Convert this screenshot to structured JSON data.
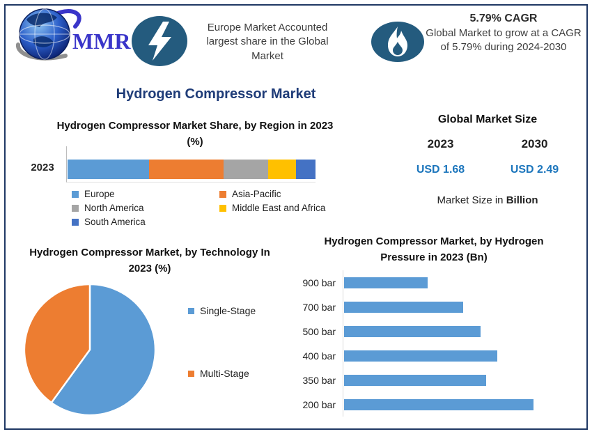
{
  "brand": {
    "logo_text": "MMR"
  },
  "header": {
    "highlight_europe": {
      "icon": "lightning-icon",
      "text": "Europe Market Accounted largest share in the Global Market"
    },
    "highlight_cagr": {
      "icon": "flame-icon",
      "title": "5.79% CAGR",
      "text": "Global Market to grow at a CAGR of 5.79% during 2024-2030"
    }
  },
  "main_title": "Hydrogen Compressor Market",
  "market_size": {
    "title": "Global Market Size",
    "years": [
      "2023",
      "2030"
    ],
    "values": [
      "USD 1.68",
      "USD 2.49"
    ],
    "caption_prefix": "Market Size in ",
    "caption_bold": "Billion"
  },
  "colors": {
    "accent_navy": "#1F3864",
    "icon_navy": "#245B7E",
    "title_blue": "#1F3C78",
    "usd_blue": "#1B75BC",
    "series_blue": "#5B9BD5",
    "series_orange": "#ED7D31",
    "series_gray": "#A5A5A5",
    "series_yellow": "#FFC000",
    "series_darkblue": "#4472C4"
  },
  "chart_data": [
    {
      "type": "bar",
      "variant": "stacked-horizontal",
      "title": "Hydrogen Compressor Market Share, by Region in 2023 (%)",
      "categories": [
        "2023"
      ],
      "series": [
        {
          "name": "Europe",
          "color": "#5B9BD5",
          "values": [
            33
          ]
        },
        {
          "name": "Asia-Pacific",
          "color": "#ED7D31",
          "values": [
            30
          ]
        },
        {
          "name": "North America",
          "color": "#A5A5A5",
          "values": [
            18
          ]
        },
        {
          "name": "Middle East and Africa",
          "color": "#FFC000",
          "values": [
            11
          ]
        },
        {
          "name": "South America",
          "color": "#4472C4",
          "values": [
            8
          ]
        }
      ],
      "legend_position": "bottom",
      "note": "segment widths estimated from pixel proportions; no value labels shown"
    },
    {
      "type": "pie",
      "title": "Hydrogen Compressor Market, by Technology In 2023 (%)",
      "labels": [
        "Single-Stage",
        "Multi-Stage"
      ],
      "values": [
        60,
        40
      ],
      "colors": [
        "#5B9BD5",
        "#ED7D31"
      ],
      "start_angle": 0,
      "legend_position": "right",
      "note": "slice sizes estimated from arc angles; no value labels shown"
    },
    {
      "type": "bar",
      "variant": "horizontal",
      "title": "Hydrogen Compressor Market, by Hydrogen Pressure in 2023 (Bn)",
      "categories": [
        "900 bar",
        "700 bar",
        "500 bar",
        "400 bar",
        "350 bar",
        "200 bar"
      ],
      "values_relative": [
        0.44,
        0.63,
        0.72,
        0.81,
        0.75,
        1.0
      ],
      "color": "#5B9BD5",
      "note": "x-axis unlabeled; values are bar lengths relative to longest bar (200 bar)"
    }
  ]
}
